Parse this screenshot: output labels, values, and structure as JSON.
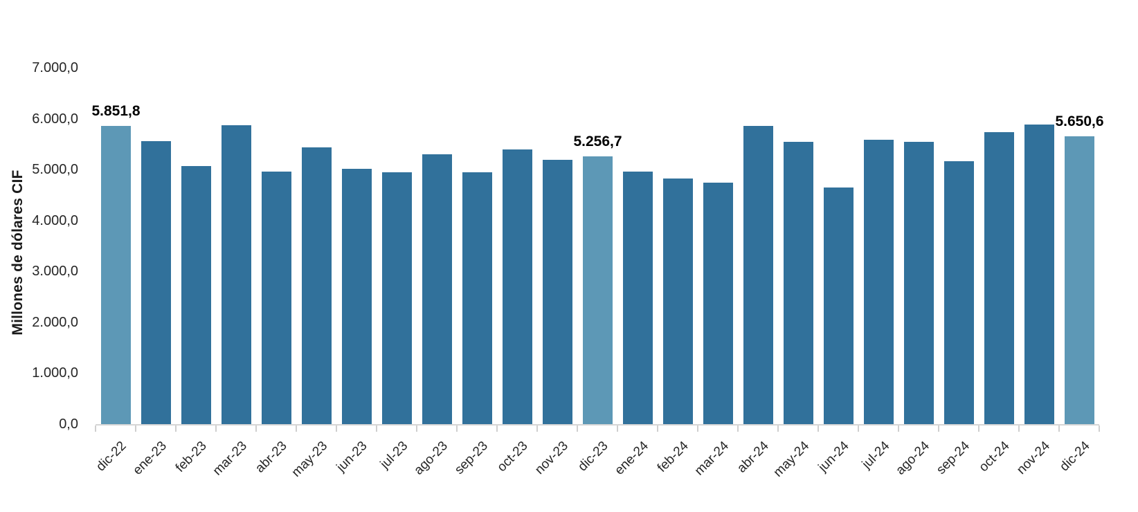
{
  "chart_data": {
    "type": "bar",
    "title": "",
    "xlabel": "",
    "ylabel": "Millones de dólares CIF",
    "categories": [
      "dic-22",
      "ene-23",
      "feb-23",
      "mar-23",
      "abr-23",
      "may-23",
      "jun-23",
      "jul-23",
      "ago-23",
      "sep-23",
      "oct-23",
      "nov-23",
      "dic-23",
      "ene-24",
      "feb-24",
      "mar-24",
      "abr-24",
      "may-24",
      "jun-24",
      "jul-24",
      "ago-24",
      "sep-24",
      "oct-24",
      "nov-24",
      "dic-24"
    ],
    "values": [
      5851.8,
      5560,
      5070,
      5875,
      4960,
      5435,
      5015,
      4945,
      5300,
      4945,
      5395,
      5190,
      5256.7,
      4960,
      4825,
      4745,
      5855,
      5545,
      4650,
      5585,
      5545,
      5165,
      5735,
      5890,
      5650.6
    ],
    "highlighted_indices": [
      0,
      12,
      24
    ],
    "data_labels": {
      "0": "5.851,8",
      "12": "5.256,7",
      "24": "5.650,6"
    },
    "ylim": [
      0,
      7000
    ],
    "ytick_step": 1000,
    "ytick_labels": [
      "0,0",
      "1.000,0",
      "2.000,0",
      "3.000,0",
      "4.000,0",
      "5.000,0",
      "6.000,0",
      "7.000,0"
    ],
    "grid": false,
    "legend": null,
    "bar_color": "#31719b",
    "highlight_color": "#5d98b6"
  }
}
